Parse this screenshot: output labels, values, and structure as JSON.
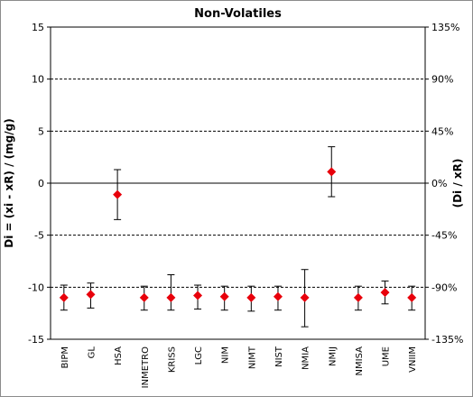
{
  "chart_data": {
    "type": "scatter",
    "title": "Non-Volatiles",
    "ylabel": "Di = (xi - xR) / (mg/g)",
    "y2label": "(Di / xR)",
    "ylim": [
      -15,
      15
    ],
    "yticks": [
      15,
      10,
      5,
      0,
      -5,
      -10,
      -15
    ],
    "y2lim": [
      -1.35,
      1.35
    ],
    "y2ticks": [
      "135%",
      "90%",
      "45%",
      "0%",
      "-45%",
      "-90%",
      "-135%"
    ],
    "grid": "dashed horizontal lines at major ticks",
    "categories": [
      "BIPM",
      "GL",
      "HSA",
      "INMETRO",
      "KRISS",
      "LGC",
      "NIM",
      "NIMT",
      "NIST",
      "NMIA",
      "NMIJ",
      "NMISA",
      "UME",
      "VNIIM"
    ],
    "values": [
      -11.0,
      -10.7,
      -1.1,
      -11.0,
      -11.0,
      -10.8,
      -10.9,
      -11.0,
      -10.9,
      -11.0,
      1.1,
      -11.0,
      -10.5,
      -11.0
    ],
    "err_low": [
      -12.2,
      -12.0,
      -3.5,
      -12.2,
      -12.2,
      -12.1,
      -12.2,
      -12.3,
      -12.2,
      -13.8,
      -1.3,
      -12.2,
      -11.6,
      -12.2
    ],
    "err_high": [
      -9.8,
      -9.6,
      1.3,
      -9.9,
      -8.8,
      -9.8,
      -9.9,
      -9.9,
      -9.9,
      -8.3,
      3.5,
      -9.9,
      -9.4,
      -9.9
    ],
    "marker_color": "#e8000b"
  }
}
